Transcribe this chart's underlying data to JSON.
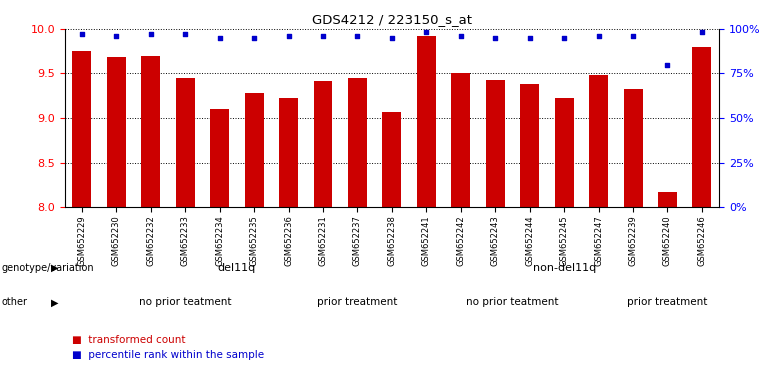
{
  "title": "GDS4212 / 223150_s_at",
  "samples": [
    "GSM652229",
    "GSM652230",
    "GSM652232",
    "GSM652233",
    "GSM652234",
    "GSM652235",
    "GSM652236",
    "GSM652231",
    "GSM652237",
    "GSM652238",
    "GSM652241",
    "GSM652242",
    "GSM652243",
    "GSM652244",
    "GSM652245",
    "GSM652247",
    "GSM652239",
    "GSM652240",
    "GSM652246"
  ],
  "bar_values": [
    9.75,
    9.68,
    9.7,
    9.45,
    9.1,
    9.28,
    9.22,
    9.42,
    9.45,
    9.07,
    9.92,
    9.5,
    9.43,
    9.38,
    9.22,
    9.48,
    9.33,
    8.17,
    9.8
  ],
  "percentile_values": [
    97,
    96,
    97,
    97,
    95,
    95,
    96,
    96,
    96,
    95,
    98,
    96,
    95,
    95,
    95,
    96,
    96,
    80,
    98
  ],
  "bar_color": "#cc0000",
  "dot_color": "#0000cc",
  "ylim_left": [
    8.0,
    10.0
  ],
  "ylim_right": [
    0,
    100
  ],
  "yticks_left": [
    8.0,
    8.5,
    9.0,
    9.5,
    10.0
  ],
  "yticks_right": [
    0,
    25,
    50,
    75,
    100
  ],
  "ytick_labels_right": [
    "0%",
    "25%",
    "50%",
    "75%",
    "100%"
  ],
  "background_color": "#ffffff",
  "genotype_groups": [
    {
      "label": "del11q",
      "start": 0,
      "end": 10,
      "color": "#aaddaa"
    },
    {
      "label": "non-del11q",
      "start": 10,
      "end": 19,
      "color": "#44cc44"
    }
  ],
  "other_groups": [
    {
      "label": "no prior teatment",
      "start": 0,
      "end": 7,
      "color": "#ee88ee"
    },
    {
      "label": "prior treatment",
      "start": 7,
      "end": 10,
      "color": "#cc44cc"
    },
    {
      "label": "no prior teatment",
      "start": 10,
      "end": 16,
      "color": "#ee88ee"
    },
    {
      "label": "prior treatment",
      "start": 16,
      "end": 19,
      "color": "#cc44cc"
    }
  ],
  "genotype_label": "genotype/variation",
  "other_label": "other",
  "legend_red_label": "transformed count",
  "legend_blue_label": "percentile rank within the sample",
  "legend_red_color": "#cc0000",
  "legend_blue_color": "#0000cc"
}
